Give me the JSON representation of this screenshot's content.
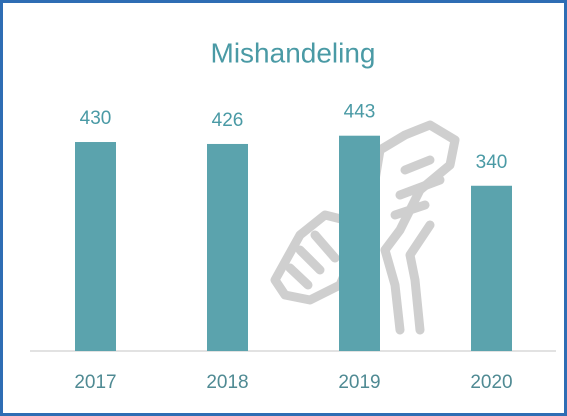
{
  "chart_data": {
    "type": "bar",
    "title": "Mishandeling",
    "categories": [
      "2017",
      "2018",
      "2019",
      "2020"
    ],
    "values": [
      430,
      426,
      443,
      340
    ],
    "color": "#5ba3ad",
    "ylim": [
      0,
      500
    ],
    "data_labels": true
  }
}
